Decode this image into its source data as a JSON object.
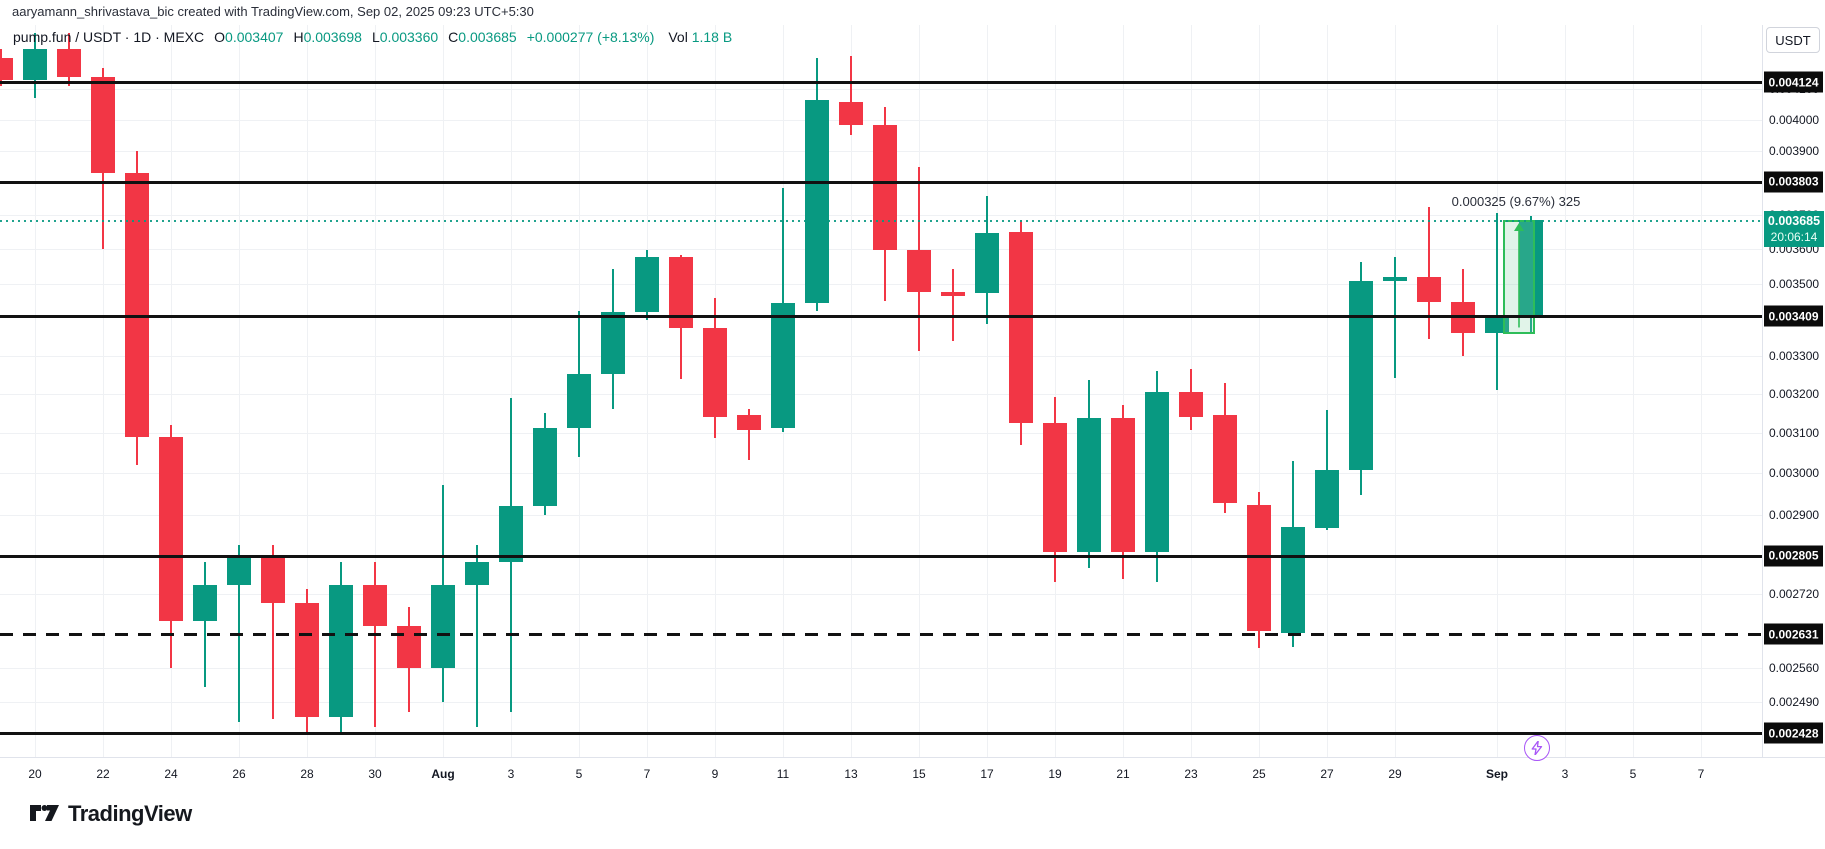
{
  "attribution": "aaryamann_shrivastava_bic created with TradingView.com, Sep 02, 2025 09:23 UTC+5:30",
  "header": {
    "title": "pump.fun / USDT · 1D · MEXC",
    "ohlc": [
      {
        "label": "O",
        "value": "0.003407"
      },
      {
        "label": "H",
        "value": "0.003698"
      },
      {
        "label": "L",
        "value": "0.003360"
      },
      {
        "label": "C",
        "value": "0.003685"
      }
    ],
    "change": "+0.000277 (+8.13%)",
    "volume_label": "Vol",
    "volume_value": "1.18 B"
  },
  "axis_right": {
    "currency_button": "USDT",
    "current_price_badge": {
      "price": "0.003685",
      "price_value": 0.003685,
      "countdown": "20:06:14"
    },
    "line_badges": [
      {
        "text": "0.004124",
        "price": 0.004124,
        "dashed": false
      },
      {
        "text": "0.003803",
        "price": 0.003803,
        "dashed": false
      },
      {
        "text": "0.003409",
        "price": 0.003409,
        "dashed": false
      },
      {
        "text": "0.002805",
        "price": 0.002805,
        "dashed": false
      },
      {
        "text": "0.002631",
        "price": 0.002631,
        "dashed": true
      },
      {
        "text": "0.002428",
        "price": 0.002428,
        "dashed": false
      }
    ],
    "labels": [
      {
        "text": "0.004100",
        "price": 0.0041
      },
      {
        "text": "0.004000",
        "price": 0.004
      },
      {
        "text": "0.003900",
        "price": 0.0039
      },
      {
        "text": "0.003700",
        "price": 0.0037
      },
      {
        "text": "0.003600",
        "price": 0.0036
      },
      {
        "text": "0.003500",
        "price": 0.0035
      },
      {
        "text": "0.003300",
        "price": 0.0033
      },
      {
        "text": "0.003200",
        "price": 0.0032
      },
      {
        "text": "0.003100",
        "price": 0.0031
      },
      {
        "text": "0.003000",
        "price": 0.003
      },
      {
        "text": "0.002900",
        "price": 0.0029
      },
      {
        "text": "0.002720",
        "price": 0.00272
      },
      {
        "text": "0.002560",
        "price": 0.00256
      },
      {
        "text": "0.002490",
        "price": 0.00249
      }
    ]
  },
  "axis_bottom": {
    "labels": [
      {
        "text": "20",
        "day_index": 0,
        "is_month": false
      },
      {
        "text": "22",
        "day_index": 2,
        "is_month": false
      },
      {
        "text": "24",
        "day_index": 4,
        "is_month": false
      },
      {
        "text": "26",
        "day_index": 6,
        "is_month": false
      },
      {
        "text": "28",
        "day_index": 8,
        "is_month": false
      },
      {
        "text": "30",
        "day_index": 10,
        "is_month": false
      },
      {
        "text": "Aug",
        "day_index": 12,
        "is_month": true
      },
      {
        "text": "3",
        "day_index": 14,
        "is_month": false
      },
      {
        "text": "5",
        "day_index": 16,
        "is_month": false
      },
      {
        "text": "7",
        "day_index": 18,
        "is_month": false
      },
      {
        "text": "9",
        "day_index": 20,
        "is_month": false
      },
      {
        "text": "11",
        "day_index": 22,
        "is_month": false
      },
      {
        "text": "13",
        "day_index": 24,
        "is_month": false
      },
      {
        "text": "15",
        "day_index": 26,
        "is_month": false
      },
      {
        "text": "17",
        "day_index": 28,
        "is_month": false
      },
      {
        "text": "19",
        "day_index": 30,
        "is_month": false
      },
      {
        "text": "21",
        "day_index": 32,
        "is_month": false
      },
      {
        "text": "23",
        "day_index": 34,
        "is_month": false
      },
      {
        "text": "25",
        "day_index": 36,
        "is_month": false
      },
      {
        "text": "27",
        "day_index": 38,
        "is_month": false
      },
      {
        "text": "29",
        "day_index": 40,
        "is_month": false
      },
      {
        "text": "Sep",
        "day_index": 43,
        "is_month": true
      },
      {
        "text": "3",
        "day_index": 45,
        "is_month": false
      },
      {
        "text": "5",
        "day_index": 47,
        "is_month": false
      },
      {
        "text": "7",
        "day_index": 49,
        "is_month": false
      }
    ]
  },
  "chart_data": {
    "type": "candlestick",
    "title": "pump.fun / USDT",
    "interval": "1D",
    "exchange": "MEXC",
    "y_scale": "log",
    "ylim": [
      0.00238,
      0.00435
    ],
    "current_price": 0.003685,
    "horizontal_lines": [
      {
        "price": 0.004124,
        "style": "solid"
      },
      {
        "price": 0.003803,
        "style": "solid"
      },
      {
        "price": 0.003409,
        "style": "solid"
      },
      {
        "price": 0.002805,
        "style": "solid"
      },
      {
        "price": 0.002631,
        "style": "dashed"
      },
      {
        "price": 0.002428,
        "style": "solid"
      }
    ],
    "candles": [
      {
        "date": "Jul 19",
        "o": 0.004205,
        "h": 0.004235,
        "l": 0.00411,
        "c": 0.00413
      },
      {
        "date": "Jul 20",
        "o": 0.00413,
        "h": 0.00429,
        "l": 0.00407,
        "c": 0.004235
      },
      {
        "date": "Jul 21",
        "o": 0.004235,
        "h": 0.00429,
        "l": 0.00411,
        "c": 0.00414
      },
      {
        "date": "Jul 22",
        "o": 0.00414,
        "h": 0.00417,
        "l": 0.0036,
        "c": 0.00383
      },
      {
        "date": "Jul 23",
        "o": 0.00383,
        "h": 0.0039,
        "l": 0.00302,
        "c": 0.00309
      },
      {
        "date": "Jul 24",
        "o": 0.00309,
        "h": 0.00312,
        "l": 0.00256,
        "c": 0.00266
      },
      {
        "date": "Jul 25",
        "o": 0.00266,
        "h": 0.00279,
        "l": 0.00252,
        "c": 0.00274
      },
      {
        "date": "Jul 26",
        "o": 0.00274,
        "h": 0.00283,
        "l": 0.00245,
        "c": 0.0028
      },
      {
        "date": "Jul 27",
        "o": 0.0028,
        "h": 0.00283,
        "l": 0.002455,
        "c": 0.0027
      },
      {
        "date": "Jul 28",
        "o": 0.0027,
        "h": 0.00273,
        "l": 0.002428,
        "c": 0.00246
      },
      {
        "date": "Jul 29",
        "o": 0.00246,
        "h": 0.00279,
        "l": 0.00243,
        "c": 0.00274
      },
      {
        "date": "Jul 30",
        "o": 0.00274,
        "h": 0.00279,
        "l": 0.00244,
        "c": 0.00265
      },
      {
        "date": "Jul 31",
        "o": 0.00265,
        "h": 0.00269,
        "l": 0.00247,
        "c": 0.00256
      },
      {
        "date": "Aug 1",
        "o": 0.00256,
        "h": 0.00297,
        "l": 0.00249,
        "c": 0.00274
      },
      {
        "date": "Aug 2",
        "o": 0.00274,
        "h": 0.00283,
        "l": 0.00244,
        "c": 0.00279
      },
      {
        "date": "Aug 3",
        "o": 0.00279,
        "h": 0.00319,
        "l": 0.00247,
        "c": 0.00292
      },
      {
        "date": "Aug 4",
        "o": 0.00292,
        "h": 0.00315,
        "l": 0.0029,
        "c": 0.003113
      },
      {
        "date": "Aug 5",
        "o": 0.003113,
        "h": 0.003424,
        "l": 0.00304,
        "c": 0.003253
      },
      {
        "date": "Aug 6",
        "o": 0.003253,
        "h": 0.003543,
        "l": 0.003161,
        "c": 0.003419
      },
      {
        "date": "Aug 7",
        "o": 0.003419,
        "h": 0.003596,
        "l": 0.003397,
        "c": 0.003576
      },
      {
        "date": "Aug 8",
        "o": 0.003576,
        "h": 0.003582,
        "l": 0.003238,
        "c": 0.003377
      },
      {
        "date": "Aug 9",
        "o": 0.003377,
        "h": 0.00346,
        "l": 0.003087,
        "c": 0.00314
      },
      {
        "date": "Aug 10",
        "o": 0.003144,
        "h": 0.00316,
        "l": 0.003033,
        "c": 0.003106
      },
      {
        "date": "Aug 11",
        "o": 0.003113,
        "h": 0.003782,
        "l": 0.003102,
        "c": 0.003444
      },
      {
        "date": "Aug 12",
        "o": 0.003444,
        "h": 0.004205,
        "l": 0.003424,
        "c": 0.004064
      },
      {
        "date": "Aug 13",
        "o": 0.004058,
        "h": 0.004212,
        "l": 0.003951,
        "c": 0.003983
      },
      {
        "date": "Aug 14",
        "o": 0.003983,
        "h": 0.00404,
        "l": 0.00345,
        "c": 0.003596
      },
      {
        "date": "Aug 15",
        "o": 0.003596,
        "h": 0.003849,
        "l": 0.003314,
        "c": 0.003477
      },
      {
        "date": "Aug 16",
        "o": 0.003477,
        "h": 0.003543,
        "l": 0.00334,
        "c": 0.003466
      },
      {
        "date": "Aug 17",
        "o": 0.003473,
        "h": 0.00376,
        "l": 0.003388,
        "c": 0.003647
      },
      {
        "date": "Aug 18",
        "o": 0.00365,
        "h": 0.003686,
        "l": 0.003069,
        "c": 0.003125
      },
      {
        "date": "Aug 19",
        "o": 0.003125,
        "h": 0.003192,
        "l": 0.002746,
        "c": 0.002814
      },
      {
        "date": "Aug 20",
        "o": 0.002814,
        "h": 0.003235,
        "l": 0.002777,
        "c": 0.003137
      },
      {
        "date": "Aug 21",
        "o": 0.003137,
        "h": 0.00317,
        "l": 0.002752,
        "c": 0.002814
      },
      {
        "date": "Aug 22",
        "o": 0.002814,
        "h": 0.003261,
        "l": 0.002746,
        "c": 0.003204
      },
      {
        "date": "Aug 23",
        "o": 0.003204,
        "h": 0.003266,
        "l": 0.003106,
        "c": 0.00314
      },
      {
        "date": "Aug 24",
        "o": 0.003144,
        "h": 0.003227,
        "l": 0.002905,
        "c": 0.002929
      },
      {
        "date": "Aug 25",
        "o": 0.002924,
        "h": 0.002954,
        "l": 0.002603,
        "c": 0.002638
      },
      {
        "date": "Aug 26",
        "o": 0.002634,
        "h": 0.00303,
        "l": 0.002604,
        "c": 0.002872
      },
      {
        "date": "Aug 27",
        "o": 0.00287,
        "h": 0.003157,
        "l": 0.002865,
        "c": 0.003008
      },
      {
        "date": "Aug 28",
        "o": 0.003008,
        "h": 0.003563,
        "l": 0.002947,
        "c": 0.003507
      },
      {
        "date": "Aug 29",
        "o": 0.003507,
        "h": 0.003578,
        "l": 0.003241,
        "c": 0.00352
      },
      {
        "date": "Aug 30",
        "o": 0.00352,
        "h": 0.003725,
        "l": 0.003345,
        "c": 0.003447
      },
      {
        "date": "Aug 31",
        "o": 0.003447,
        "h": 0.003543,
        "l": 0.003301,
        "c": 0.003363
      },
      {
        "date": "Sep 1",
        "o": 0.003363,
        "h": 0.003708,
        "l": 0.003209,
        "c": 0.00341
      },
      {
        "date": "Sep 2",
        "o": 0.003407,
        "h": 0.003698,
        "l": 0.00336,
        "c": 0.003685
      }
    ]
  },
  "measure_tool": {
    "label": "0.000325 (9.67%) 325",
    "from_price": 0.00336,
    "to_price": 0.003685
  },
  "marker": {
    "type": "flash",
    "color": "#a855f7"
  },
  "footer": {
    "brand": "TradingView"
  },
  "colors": {
    "up": "#089981",
    "down": "#f23645",
    "drawn_line": "#111111",
    "badge_bg": "#0b0b0b",
    "current_badge_bg": "#089981",
    "measure_border": "#2ebd59"
  }
}
